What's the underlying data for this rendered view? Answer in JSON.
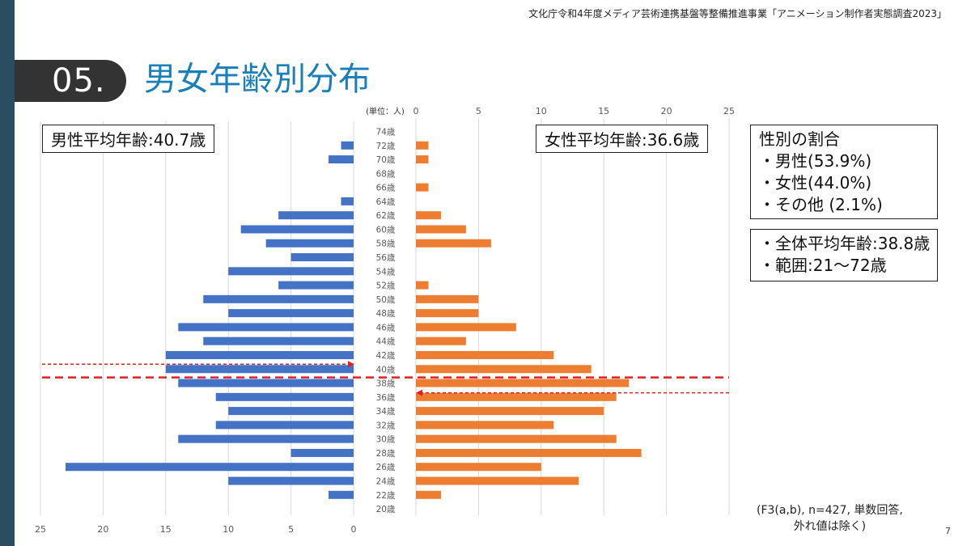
{
  "header_note": "文化庁令和4年度メディア芸術連携基盤等整備推進事業「アニメーション制作者実態調査2023」",
  "section_number": "05.",
  "page_title": "男女年齢別分布",
  "male_average": "男性平均年齢:40.7歳",
  "female_average": "女性平均年齢:36.6歳",
  "gender_ratio": {
    "title": "性別の割合",
    "items": [
      "・男性(53.9%)",
      "・女性(44.0%)",
      "・その他 (2.1%)"
    ]
  },
  "overall": {
    "items": [
      "・全体平均年齢:38.8歳",
      "・範囲:21〜72歳"
    ]
  },
  "note_lines": [
    "(F3(a,b), n=427, 単数回答,",
    "外れ値は除く)"
  ],
  "page_number": "7",
  "chart_data": {
    "type": "bar",
    "orientation": "horizontal-population-pyramid",
    "unit_label": "(単位：人)",
    "categories": [
      "74歳",
      "72歳",
      "70歳",
      "68歳",
      "66歳",
      "64歳",
      "62歳",
      "60歳",
      "58歳",
      "56歳",
      "54歳",
      "52歳",
      "50歳",
      "48歳",
      "46歳",
      "44歳",
      "42歳",
      "40歳",
      "38歳",
      "36歳",
      "34歳",
      "32歳",
      "30歳",
      "28歳",
      "26歳",
      "24歳",
      "22歳",
      "20歳"
    ],
    "series": [
      {
        "name": "男性",
        "color": "#4472c4",
        "values": [
          0,
          1,
          2,
          0,
          0,
          1,
          6,
          9,
          7,
          5,
          10,
          6,
          12,
          10,
          14,
          12,
          15,
          15,
          14,
          11,
          10,
          11,
          14,
          5,
          23,
          10,
          2,
          0
        ]
      },
      {
        "name": "女性",
        "color": "#ed7d31",
        "values": [
          0,
          1,
          1,
          0,
          1,
          0,
          2,
          4,
          6,
          0,
          0,
          1,
          5,
          5,
          8,
          4,
          11,
          14,
          17,
          16,
          15,
          11,
          16,
          18,
          10,
          13,
          2,
          0
        ]
      }
    ],
    "xlim": [
      0,
      25
    ],
    "x_ticks": [
      0,
      5,
      10,
      15,
      20,
      25
    ],
    "x_tick_labels": [
      "0",
      "5",
      "10",
      "15",
      "20",
      "25"
    ],
    "reference_lines": [
      {
        "side": "male",
        "age": 40.7,
        "color": "#e02020"
      },
      {
        "side": "female",
        "age": 36.6,
        "color": "#e02020"
      },
      {
        "side": "all",
        "age": 38.8,
        "color": "#e02020"
      }
    ]
  }
}
